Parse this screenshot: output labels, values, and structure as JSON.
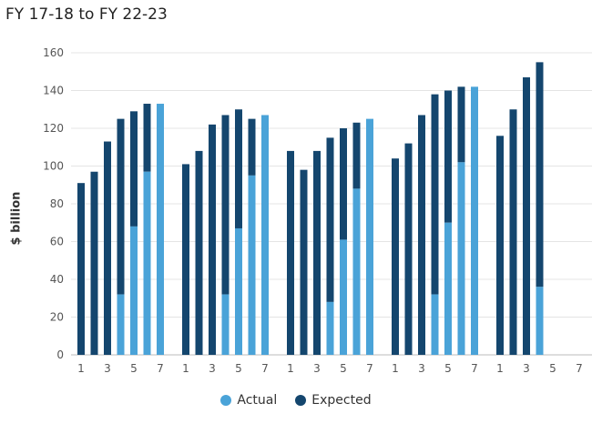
{
  "colors": {
    "actual": "#4aa3d8",
    "expected": "#14466e",
    "grid": "#e4e4e4",
    "axis": "#bbbbbb"
  },
  "chart_data": {
    "type": "bar",
    "title": "FY 17-18 to FY 22-23",
    "xlabel": "",
    "ylabel": "$ billion",
    "ylim": [
      0,
      160
    ],
    "yticks": [
      0,
      20,
      40,
      60,
      80,
      100,
      120,
      140,
      160
    ],
    "grid": true,
    "legend_position": "bottom",
    "x_tick_labels": [
      "1",
      "3",
      "5",
      "7"
    ],
    "legend": [
      {
        "name": "Actual",
        "color_key": "actual"
      },
      {
        "name": "Expected",
        "color_key": "expected"
      }
    ],
    "groups": [
      {
        "bars": [
          {
            "x": 1,
            "expected": 91,
            "actual": 0
          },
          {
            "x": 2,
            "expected": 97,
            "actual": 0
          },
          {
            "x": 3,
            "expected": 113,
            "actual": 0
          },
          {
            "x": 4,
            "expected": 125,
            "actual": 32
          },
          {
            "x": 5,
            "expected": 129,
            "actual": 68
          },
          {
            "x": 6,
            "expected": 133,
            "actual": 97
          },
          {
            "x": 7,
            "expected": 0,
            "actual": 133
          }
        ]
      },
      {
        "bars": [
          {
            "x": 1,
            "expected": 101,
            "actual": 0
          },
          {
            "x": 2,
            "expected": 108,
            "actual": 0
          },
          {
            "x": 3,
            "expected": 122,
            "actual": 0
          },
          {
            "x": 4,
            "expected": 127,
            "actual": 32
          },
          {
            "x": 5,
            "expected": 130,
            "actual": 67
          },
          {
            "x": 6,
            "expected": 125,
            "actual": 95
          },
          {
            "x": 7,
            "expected": 0,
            "actual": 127
          }
        ]
      },
      {
        "bars": [
          {
            "x": 1,
            "expected": 108,
            "actual": 0
          },
          {
            "x": 2,
            "expected": 98,
            "actual": 0
          },
          {
            "x": 3,
            "expected": 108,
            "actual": 0
          },
          {
            "x": 4,
            "expected": 115,
            "actual": 28
          },
          {
            "x": 5,
            "expected": 120,
            "actual": 61
          },
          {
            "x": 6,
            "expected": 123,
            "actual": 88
          },
          {
            "x": 7,
            "expected": 0,
            "actual": 125
          }
        ]
      },
      {
        "bars": [
          {
            "x": 1,
            "expected": 104,
            "actual": 0
          },
          {
            "x": 2,
            "expected": 112,
            "actual": 0
          },
          {
            "x": 3,
            "expected": 127,
            "actual": 0
          },
          {
            "x": 4,
            "expected": 138,
            "actual": 32
          },
          {
            "x": 5,
            "expected": 140,
            "actual": 70
          },
          {
            "x": 6,
            "expected": 142,
            "actual": 102
          },
          {
            "x": 7,
            "expected": 0,
            "actual": 142
          }
        ]
      },
      {
        "bars": [
          {
            "x": 1,
            "expected": 116,
            "actual": 0
          },
          {
            "x": 2,
            "expected": 130,
            "actual": 0
          },
          {
            "x": 3,
            "expected": 147,
            "actual": 0
          },
          {
            "x": 4,
            "expected": 155,
            "actual": 36
          },
          {
            "x": 5,
            "expected": 0,
            "actual": 0
          },
          {
            "x": 6,
            "expected": 0,
            "actual": 0
          },
          {
            "x": 7,
            "expected": 0,
            "actual": 0
          }
        ]
      }
    ]
  }
}
